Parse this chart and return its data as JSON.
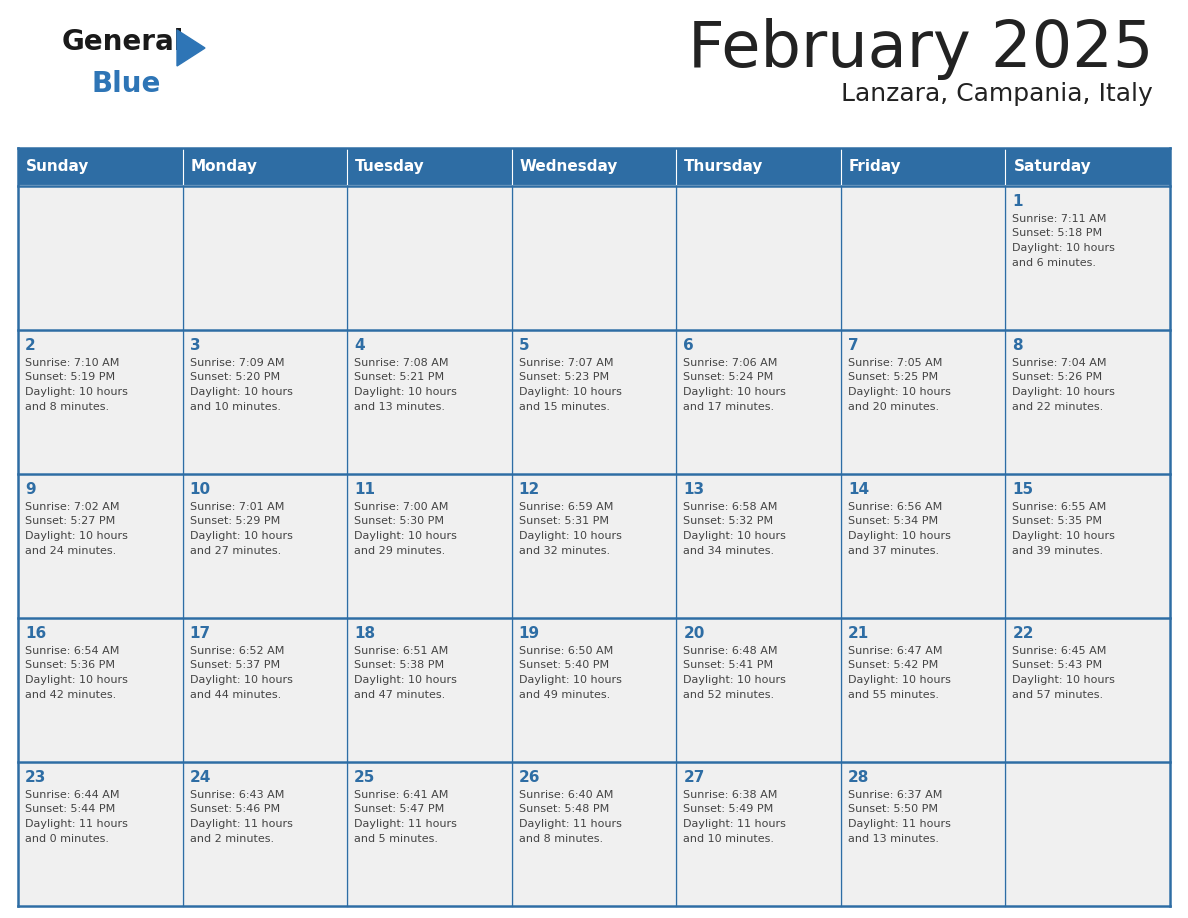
{
  "title": "February 2025",
  "subtitle": "Lanzara, Campania, Italy",
  "header_bg": "#2E6DA4",
  "header_text_color": "#FFFFFF",
  "cell_bg_light": "#F0F0F0",
  "day_headers": [
    "Sunday",
    "Monday",
    "Tuesday",
    "Wednesday",
    "Thursday",
    "Friday",
    "Saturday"
  ],
  "title_color": "#222222",
  "subtitle_color": "#222222",
  "number_color": "#2E6DA4",
  "info_color": "#444444",
  "border_color": "#2E6DA4",
  "logo_general_color": "#1a1a1a",
  "logo_blue_color": "#2E75B6",
  "weeks": [
    [
      {
        "day": null,
        "info": ""
      },
      {
        "day": null,
        "info": ""
      },
      {
        "day": null,
        "info": ""
      },
      {
        "day": null,
        "info": ""
      },
      {
        "day": null,
        "info": ""
      },
      {
        "day": null,
        "info": ""
      },
      {
        "day": 1,
        "info": "Sunrise: 7:11 AM\nSunset: 5:18 PM\nDaylight: 10 hours\nand 6 minutes."
      }
    ],
    [
      {
        "day": 2,
        "info": "Sunrise: 7:10 AM\nSunset: 5:19 PM\nDaylight: 10 hours\nand 8 minutes."
      },
      {
        "day": 3,
        "info": "Sunrise: 7:09 AM\nSunset: 5:20 PM\nDaylight: 10 hours\nand 10 minutes."
      },
      {
        "day": 4,
        "info": "Sunrise: 7:08 AM\nSunset: 5:21 PM\nDaylight: 10 hours\nand 13 minutes."
      },
      {
        "day": 5,
        "info": "Sunrise: 7:07 AM\nSunset: 5:23 PM\nDaylight: 10 hours\nand 15 minutes."
      },
      {
        "day": 6,
        "info": "Sunrise: 7:06 AM\nSunset: 5:24 PM\nDaylight: 10 hours\nand 17 minutes."
      },
      {
        "day": 7,
        "info": "Sunrise: 7:05 AM\nSunset: 5:25 PM\nDaylight: 10 hours\nand 20 minutes."
      },
      {
        "day": 8,
        "info": "Sunrise: 7:04 AM\nSunset: 5:26 PM\nDaylight: 10 hours\nand 22 minutes."
      }
    ],
    [
      {
        "day": 9,
        "info": "Sunrise: 7:02 AM\nSunset: 5:27 PM\nDaylight: 10 hours\nand 24 minutes."
      },
      {
        "day": 10,
        "info": "Sunrise: 7:01 AM\nSunset: 5:29 PM\nDaylight: 10 hours\nand 27 minutes."
      },
      {
        "day": 11,
        "info": "Sunrise: 7:00 AM\nSunset: 5:30 PM\nDaylight: 10 hours\nand 29 minutes."
      },
      {
        "day": 12,
        "info": "Sunrise: 6:59 AM\nSunset: 5:31 PM\nDaylight: 10 hours\nand 32 minutes."
      },
      {
        "day": 13,
        "info": "Sunrise: 6:58 AM\nSunset: 5:32 PM\nDaylight: 10 hours\nand 34 minutes."
      },
      {
        "day": 14,
        "info": "Sunrise: 6:56 AM\nSunset: 5:34 PM\nDaylight: 10 hours\nand 37 minutes."
      },
      {
        "day": 15,
        "info": "Sunrise: 6:55 AM\nSunset: 5:35 PM\nDaylight: 10 hours\nand 39 minutes."
      }
    ],
    [
      {
        "day": 16,
        "info": "Sunrise: 6:54 AM\nSunset: 5:36 PM\nDaylight: 10 hours\nand 42 minutes."
      },
      {
        "day": 17,
        "info": "Sunrise: 6:52 AM\nSunset: 5:37 PM\nDaylight: 10 hours\nand 44 minutes."
      },
      {
        "day": 18,
        "info": "Sunrise: 6:51 AM\nSunset: 5:38 PM\nDaylight: 10 hours\nand 47 minutes."
      },
      {
        "day": 19,
        "info": "Sunrise: 6:50 AM\nSunset: 5:40 PM\nDaylight: 10 hours\nand 49 minutes."
      },
      {
        "day": 20,
        "info": "Sunrise: 6:48 AM\nSunset: 5:41 PM\nDaylight: 10 hours\nand 52 minutes."
      },
      {
        "day": 21,
        "info": "Sunrise: 6:47 AM\nSunset: 5:42 PM\nDaylight: 10 hours\nand 55 minutes."
      },
      {
        "day": 22,
        "info": "Sunrise: 6:45 AM\nSunset: 5:43 PM\nDaylight: 10 hours\nand 57 minutes."
      }
    ],
    [
      {
        "day": 23,
        "info": "Sunrise: 6:44 AM\nSunset: 5:44 PM\nDaylight: 11 hours\nand 0 minutes."
      },
      {
        "day": 24,
        "info": "Sunrise: 6:43 AM\nSunset: 5:46 PM\nDaylight: 11 hours\nand 2 minutes."
      },
      {
        "day": 25,
        "info": "Sunrise: 6:41 AM\nSunset: 5:47 PM\nDaylight: 11 hours\nand 5 minutes."
      },
      {
        "day": 26,
        "info": "Sunrise: 6:40 AM\nSunset: 5:48 PM\nDaylight: 11 hours\nand 8 minutes."
      },
      {
        "day": 27,
        "info": "Sunrise: 6:38 AM\nSunset: 5:49 PM\nDaylight: 11 hours\nand 10 minutes."
      },
      {
        "day": 28,
        "info": "Sunrise: 6:37 AM\nSunset: 5:50 PM\nDaylight: 11 hours\nand 13 minutes."
      },
      {
        "day": null,
        "info": ""
      }
    ]
  ]
}
